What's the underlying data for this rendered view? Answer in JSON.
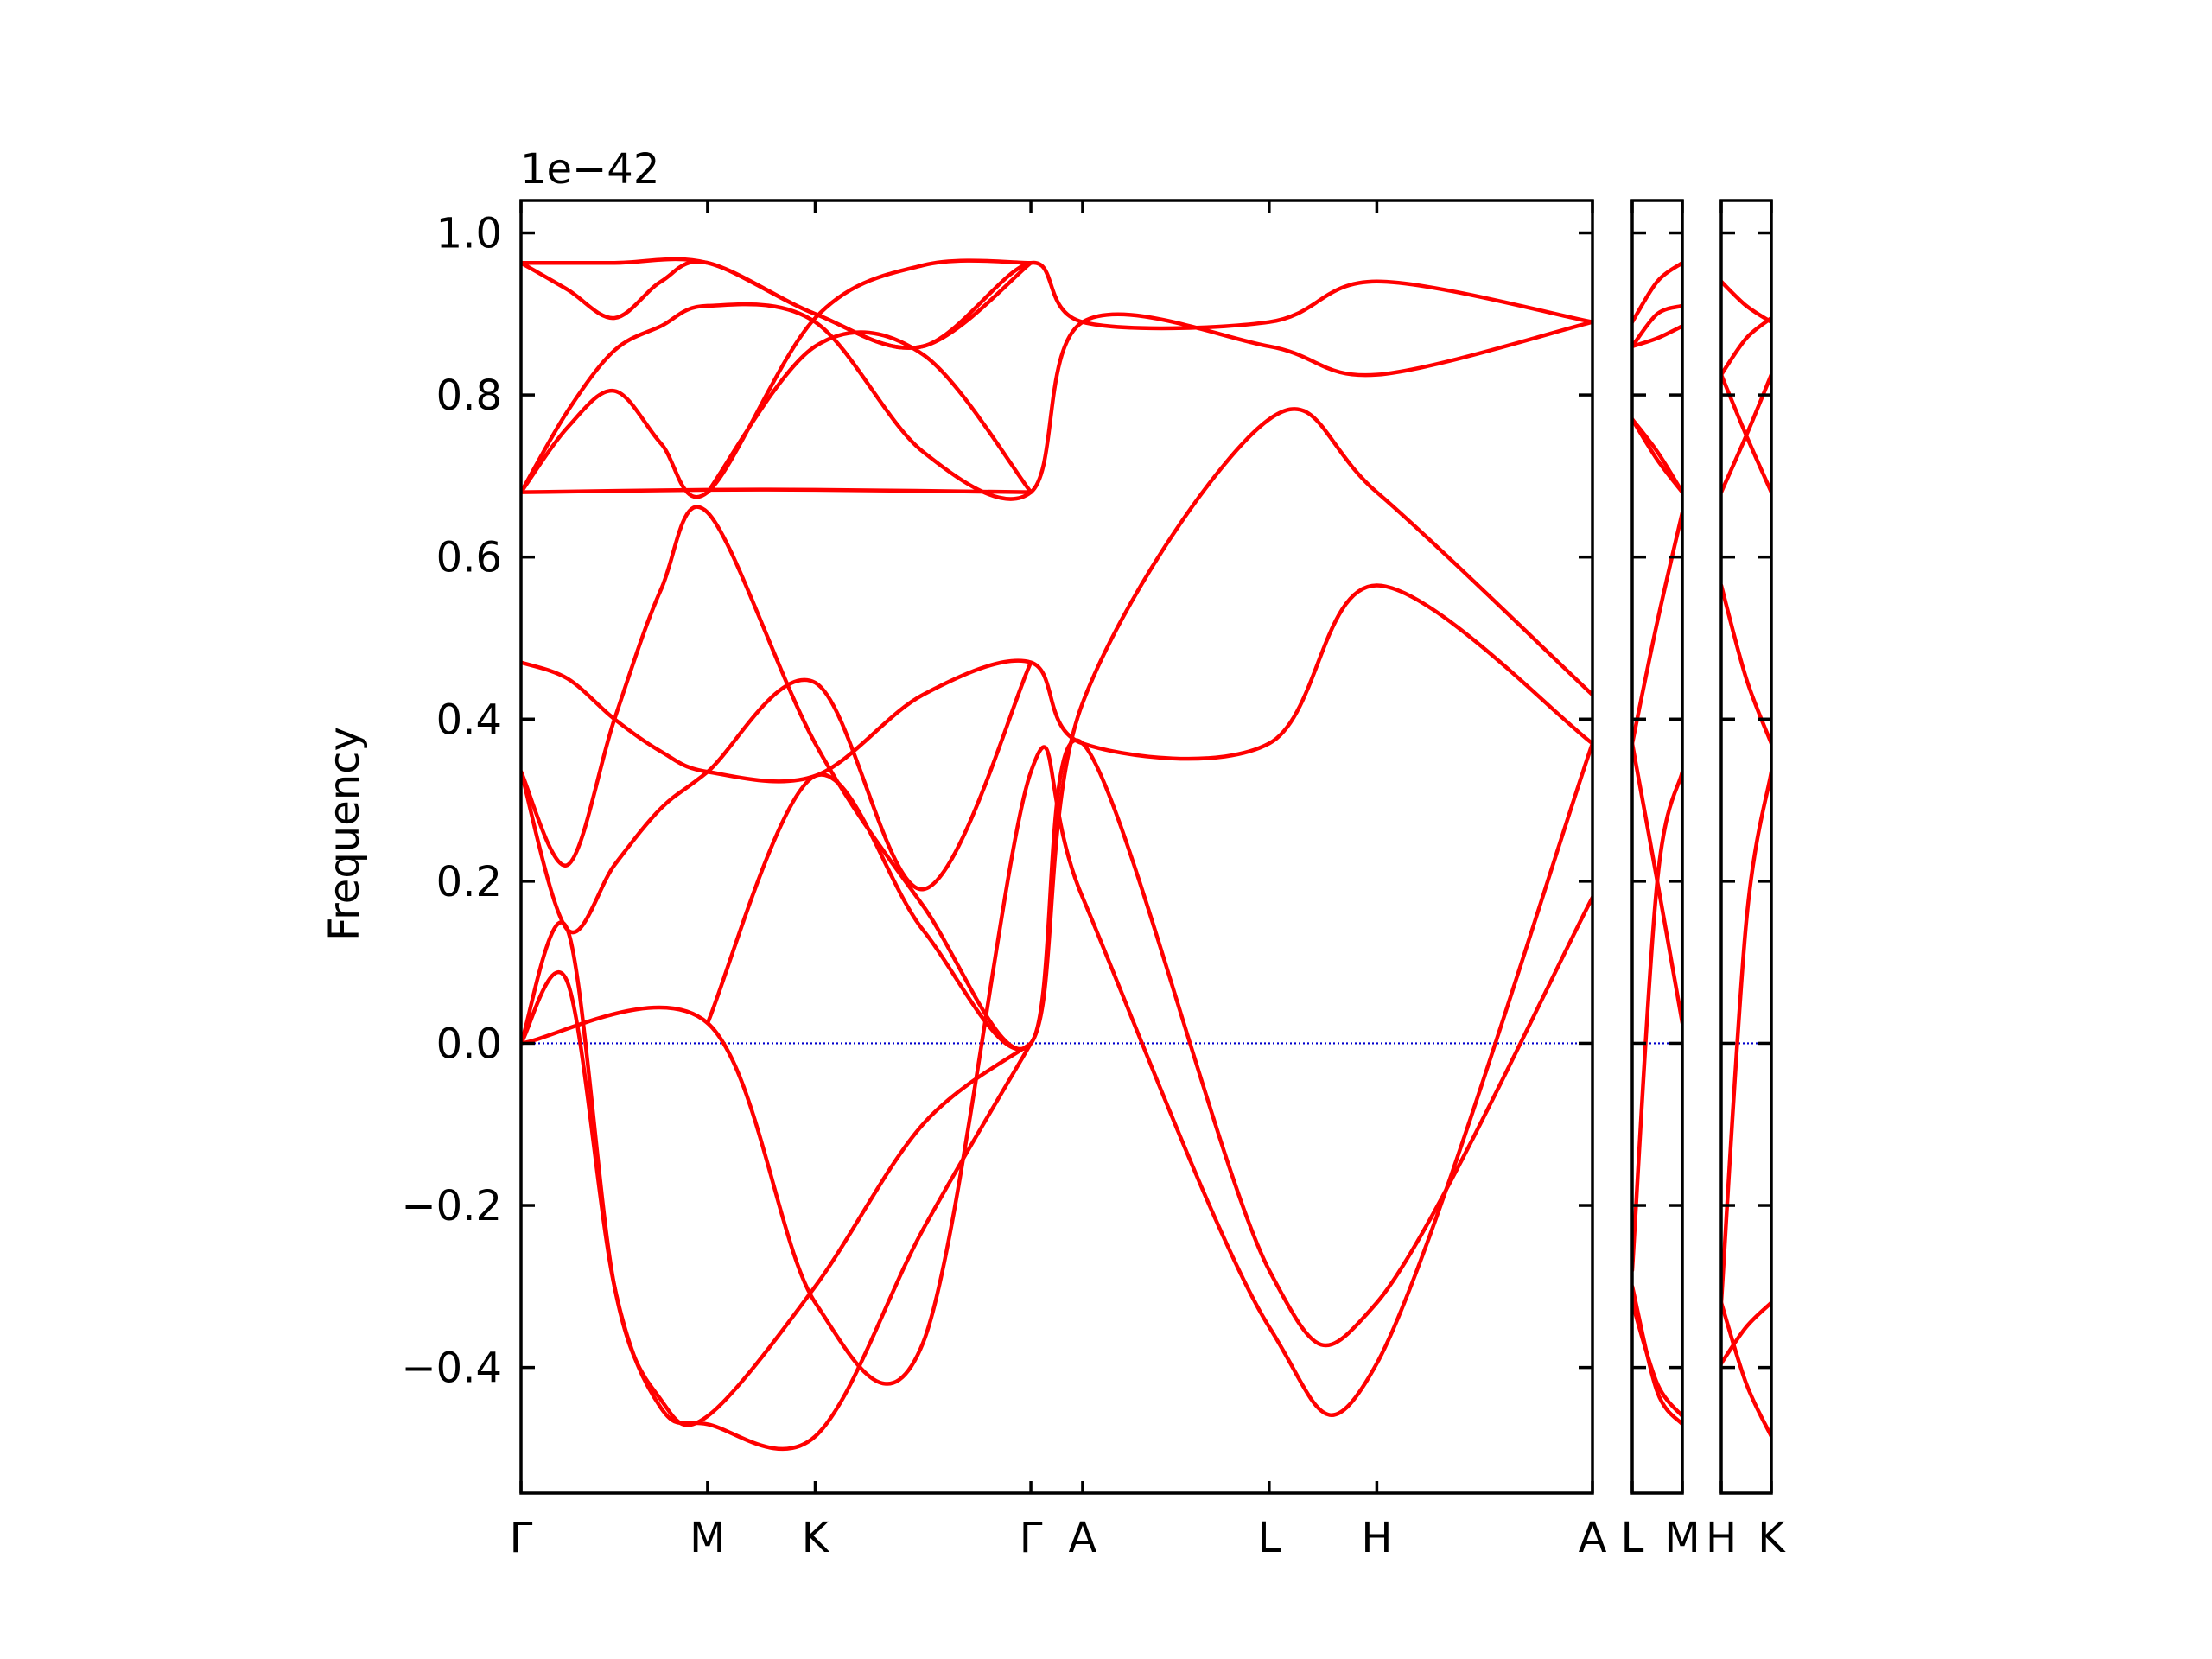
{
  "chart_data": {
    "type": "line",
    "ylabel": "Frequency",
    "offset_text": "1e−42",
    "ylim": [
      -0.555,
      1.04
    ],
    "yticks": [
      {
        "value": -0.4,
        "label": "−0.4"
      },
      {
        "value": -0.2,
        "label": "−0.2"
      },
      {
        "value": 0.0,
        "label": "0.0"
      },
      {
        "value": 0.2,
        "label": "0.2"
      },
      {
        "value": 0.4,
        "label": "0.4"
      },
      {
        "value": 0.6,
        "label": "0.6"
      },
      {
        "value": 0.8,
        "label": "0.8"
      },
      {
        "value": 1.0,
        "label": "1.0"
      }
    ],
    "line_color": "#ff0000",
    "zero_line_color": "#0000cc",
    "grid": false,
    "segments": [
      {
        "q_points": [
          {
            "label": "Γ",
            "x": 0.0
          },
          {
            "label": "M",
            "x": 0.577
          },
          {
            "label": "K",
            "x": 0.91
          },
          {
            "label": "Γ",
            "x": 1.577
          },
          {
            "label": "A",
            "x": 1.737
          },
          {
            "label": "L",
            "x": 2.314
          },
          {
            "label": "H",
            "x": 2.647
          },
          {
            "label": "A",
            "x": 3.314
          }
        ],
        "series": [
          {
            "x": [
              0,
              0.144,
              0.289,
              0.433,
              0.577,
              0.91,
              1.243,
              1.577,
              1.737,
              2.314,
              2.647,
              3.314
            ],
            "y": [
              0.963,
              0.93,
              0.895,
              0.94,
              0.963,
              0.9,
              0.86,
              0.963,
              0.89,
              0.89,
              0.94,
              0.89
            ]
          },
          {
            "x": [
              0,
              0.289,
              0.577,
              0.91,
              1.243,
              1.577
            ],
            "y": [
              0.963,
              0.963,
              0.963,
              0.9,
              0.86,
              0.963
            ]
          },
          {
            "x": [
              0,
              0.144,
              0.289,
              0.433,
              0.577,
              0.91,
              1.243,
              1.577,
              1.737,
              2.314,
              2.647,
              3.314
            ],
            "y": [
              0.68,
              0.78,
              0.855,
              0.885,
              0.91,
              0.89,
              0.73,
              0.68,
              0.89,
              0.86,
              0.825,
              0.89
            ]
          },
          {
            "x": [
              0,
              0.144,
              0.289,
              0.433,
              0.577,
              0.91,
              1.243,
              1.577
            ],
            "y": [
              0.68,
              0.76,
              0.805,
              0.74,
              0.68,
              0.895,
              0.96,
              0.963
            ]
          },
          {
            "x": [
              0,
              0.577,
              0.91,
              1.577
            ],
            "y": [
              0.68,
              0.683,
              0.683,
              0.68
            ]
          },
          {
            "x": [
              0.577,
              0.91,
              1.243,
              1.577
            ],
            "y": [
              0.68,
              0.86,
              0.85,
              0.68
            ]
          },
          {
            "x": [
              0,
              0.144,
              0.289,
              0.433,
              0.577,
              0.91,
              1.243,
              1.577,
              1.737,
              2.314,
              2.647,
              3.314
            ],
            "y": [
              0.47,
              0.45,
              0.4,
              0.36,
              0.335,
              0.33,
              0.43,
              0.47,
              0.37,
              0.37,
              0.565,
              0.37
            ]
          },
          {
            "x": [
              0,
              0.144,
              0.289,
              0.433,
              0.577,
              0.91,
              1.243,
              1.577,
              1.737,
              2.314,
              2.647,
              3.314
            ],
            "y": [
              0.335,
              0.22,
              0.4,
              0.56,
              0.655,
              0.37,
              0.17,
              0.0,
              0.42,
              0.77,
              0.68,
              0.43
            ]
          },
          {
            "x": [
              0,
              0.144,
              0.289,
              0.433,
              0.577,
              0.91,
              1.243,
              1.577
            ],
            "y": [
              0.335,
              0.14,
              0.22,
              0.29,
              0.335,
              0.445,
              0.19,
              0.47
            ]
          },
          {
            "x": [
              0,
              0.144,
              0.289,
              0.433,
              0.577,
              0.91,
              1.243,
              1.577
            ],
            "y": [
              0.0,
              0.14,
              -0.3,
              -0.44,
              -0.46,
              -0.3,
              -0.1,
              0.0
            ]
          },
          {
            "x": [
              0,
              0.144,
              0.289,
              0.433,
              0.577,
              0.91,
              1.243,
              1.577
            ],
            "y": [
              0.0,
              0.075,
              -0.3,
              -0.45,
              -0.47,
              -0.485,
              -0.23,
              0.0
            ]
          },
          {
            "x": [
              0,
              0.577,
              0.91,
              1.243,
              1.577,
              1.737,
              2.314,
              2.647,
              3.314
            ],
            "y": [
              0.0,
              0.025,
              -0.32,
              -0.37,
              0.335,
              0.18,
              -0.35,
              -0.395,
              0.37
            ]
          },
          {
            "x": [
              0.577,
              0.91,
              1.243,
              1.577,
              1.737,
              2.314,
              2.647,
              3.314
            ],
            "y": [
              0.025,
              0.33,
              0.14,
              0.0,
              0.37,
              -0.28,
              -0.32,
              0.18
            ]
          }
        ]
      },
      {
        "q_points": [
          {
            "label": "L",
            "x": 0.0
          },
          {
            "label": "M",
            "x": 0.16
          }
        ],
        "series": [
          {
            "x": [
              0,
              0.08,
              0.16
            ],
            "y": [
              0.89,
              0.94,
              0.963
            ]
          },
          {
            "x": [
              0,
              0.08,
              0.16
            ],
            "y": [
              0.86,
              0.9,
              0.91
            ]
          },
          {
            "x": [
              0,
              0.08,
              0.16
            ],
            "y": [
              0.86,
              0.87,
              0.885
            ]
          },
          {
            "x": [
              0,
              0.08,
              0.16
            ],
            "y": [
              0.77,
              0.72,
              0.68
            ]
          },
          {
            "x": [
              0,
              0.08,
              0.16
            ],
            "y": [
              0.77,
              0.73,
              0.68
            ]
          },
          {
            "x": [
              0,
              0.08,
              0.16
            ],
            "y": [
              0.37,
              0.52,
              0.655
            ]
          },
          {
            "x": [
              0,
              0.08,
              0.16
            ],
            "y": [
              0.37,
              0.2,
              0.025
            ]
          },
          {
            "x": [
              0,
              0.08,
              0.16
            ],
            "y": [
              -0.28,
              0.2,
              0.335
            ]
          },
          {
            "x": [
              0,
              0.08,
              0.16
            ],
            "y": [
              -0.32,
              -0.42,
              -0.46
            ]
          },
          {
            "x": [
              0,
              0.08,
              0.16
            ],
            "y": [
              -0.3,
              -0.43,
              -0.47
            ]
          }
        ]
      },
      {
        "q_points": [
          {
            "label": "H",
            "x": 0.0
          },
          {
            "label": "K",
            "x": 0.16
          }
        ],
        "series": [
          {
            "x": [
              0,
              0.08,
              0.16
            ],
            "y": [
              0.94,
              0.91,
              0.89
            ]
          },
          {
            "x": [
              0,
              0.08,
              0.16
            ],
            "y": [
              0.825,
              0.87,
              0.895
            ]
          },
          {
            "x": [
              0,
              0.08,
              0.16
            ],
            "y": [
              0.825,
              0.75,
              0.68
            ]
          },
          {
            "x": [
              0,
              0.08,
              0.16
            ],
            "y": [
              0.68,
              0.75,
              0.825
            ]
          },
          {
            "x": [
              0,
              0.08,
              0.16
            ],
            "y": [
              0.565,
              0.45,
              0.37
            ]
          },
          {
            "x": [
              0,
              0.08,
              0.16
            ],
            "y": [
              -0.32,
              0.15,
              0.335
            ]
          },
          {
            "x": [
              0,
              0.08,
              0.16
            ],
            "y": [
              -0.395,
              -0.35,
              -0.32
            ]
          },
          {
            "x": [
              0,
              0.08,
              0.16
            ],
            "y": [
              -0.32,
              -0.42,
              -0.485
            ]
          }
        ]
      }
    ]
  }
}
